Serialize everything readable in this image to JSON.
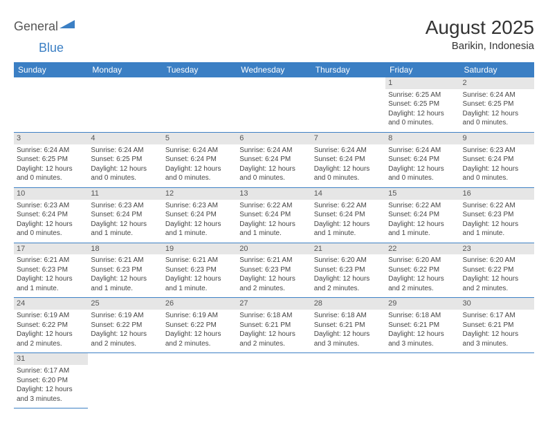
{
  "logo": {
    "general": "General",
    "blue": "Blue"
  },
  "title": "August 2025",
  "location": "Barikin, Indonesia",
  "colors": {
    "header_bg": "#3b7fc4",
    "daynum_bg": "#e6e6e6",
    "border": "#3b7fc4"
  },
  "daynames": [
    "Sunday",
    "Monday",
    "Tuesday",
    "Wednesday",
    "Thursday",
    "Friday",
    "Saturday"
  ],
  "weeks": [
    [
      null,
      null,
      null,
      null,
      null,
      {
        "n": "1",
        "sr": "Sunrise: 6:25 AM",
        "ss": "Sunset: 6:25 PM",
        "dl": "Daylight: 12 hours and 0 minutes."
      },
      {
        "n": "2",
        "sr": "Sunrise: 6:24 AM",
        "ss": "Sunset: 6:25 PM",
        "dl": "Daylight: 12 hours and 0 minutes."
      }
    ],
    [
      {
        "n": "3",
        "sr": "Sunrise: 6:24 AM",
        "ss": "Sunset: 6:25 PM",
        "dl": "Daylight: 12 hours and 0 minutes."
      },
      {
        "n": "4",
        "sr": "Sunrise: 6:24 AM",
        "ss": "Sunset: 6:25 PM",
        "dl": "Daylight: 12 hours and 0 minutes."
      },
      {
        "n": "5",
        "sr": "Sunrise: 6:24 AM",
        "ss": "Sunset: 6:24 PM",
        "dl": "Daylight: 12 hours and 0 minutes."
      },
      {
        "n": "6",
        "sr": "Sunrise: 6:24 AM",
        "ss": "Sunset: 6:24 PM",
        "dl": "Daylight: 12 hours and 0 minutes."
      },
      {
        "n": "7",
        "sr": "Sunrise: 6:24 AM",
        "ss": "Sunset: 6:24 PM",
        "dl": "Daylight: 12 hours and 0 minutes."
      },
      {
        "n": "8",
        "sr": "Sunrise: 6:24 AM",
        "ss": "Sunset: 6:24 PM",
        "dl": "Daylight: 12 hours and 0 minutes."
      },
      {
        "n": "9",
        "sr": "Sunrise: 6:23 AM",
        "ss": "Sunset: 6:24 PM",
        "dl": "Daylight: 12 hours and 0 minutes."
      }
    ],
    [
      {
        "n": "10",
        "sr": "Sunrise: 6:23 AM",
        "ss": "Sunset: 6:24 PM",
        "dl": "Daylight: 12 hours and 0 minutes."
      },
      {
        "n": "11",
        "sr": "Sunrise: 6:23 AM",
        "ss": "Sunset: 6:24 PM",
        "dl": "Daylight: 12 hours and 1 minute."
      },
      {
        "n": "12",
        "sr": "Sunrise: 6:23 AM",
        "ss": "Sunset: 6:24 PM",
        "dl": "Daylight: 12 hours and 1 minute."
      },
      {
        "n": "13",
        "sr": "Sunrise: 6:22 AM",
        "ss": "Sunset: 6:24 PM",
        "dl": "Daylight: 12 hours and 1 minute."
      },
      {
        "n": "14",
        "sr": "Sunrise: 6:22 AM",
        "ss": "Sunset: 6:24 PM",
        "dl": "Daylight: 12 hours and 1 minute."
      },
      {
        "n": "15",
        "sr": "Sunrise: 6:22 AM",
        "ss": "Sunset: 6:24 PM",
        "dl": "Daylight: 12 hours and 1 minute."
      },
      {
        "n": "16",
        "sr": "Sunrise: 6:22 AM",
        "ss": "Sunset: 6:23 PM",
        "dl": "Daylight: 12 hours and 1 minute."
      }
    ],
    [
      {
        "n": "17",
        "sr": "Sunrise: 6:21 AM",
        "ss": "Sunset: 6:23 PM",
        "dl": "Daylight: 12 hours and 1 minute."
      },
      {
        "n": "18",
        "sr": "Sunrise: 6:21 AM",
        "ss": "Sunset: 6:23 PM",
        "dl": "Daylight: 12 hours and 1 minute."
      },
      {
        "n": "19",
        "sr": "Sunrise: 6:21 AM",
        "ss": "Sunset: 6:23 PM",
        "dl": "Daylight: 12 hours and 1 minute."
      },
      {
        "n": "20",
        "sr": "Sunrise: 6:21 AM",
        "ss": "Sunset: 6:23 PM",
        "dl": "Daylight: 12 hours and 2 minutes."
      },
      {
        "n": "21",
        "sr": "Sunrise: 6:20 AM",
        "ss": "Sunset: 6:23 PM",
        "dl": "Daylight: 12 hours and 2 minutes."
      },
      {
        "n": "22",
        "sr": "Sunrise: 6:20 AM",
        "ss": "Sunset: 6:22 PM",
        "dl": "Daylight: 12 hours and 2 minutes."
      },
      {
        "n": "23",
        "sr": "Sunrise: 6:20 AM",
        "ss": "Sunset: 6:22 PM",
        "dl": "Daylight: 12 hours and 2 minutes."
      }
    ],
    [
      {
        "n": "24",
        "sr": "Sunrise: 6:19 AM",
        "ss": "Sunset: 6:22 PM",
        "dl": "Daylight: 12 hours and 2 minutes."
      },
      {
        "n": "25",
        "sr": "Sunrise: 6:19 AM",
        "ss": "Sunset: 6:22 PM",
        "dl": "Daylight: 12 hours and 2 minutes."
      },
      {
        "n": "26",
        "sr": "Sunrise: 6:19 AM",
        "ss": "Sunset: 6:22 PM",
        "dl": "Daylight: 12 hours and 2 minutes."
      },
      {
        "n": "27",
        "sr": "Sunrise: 6:18 AM",
        "ss": "Sunset: 6:21 PM",
        "dl": "Daylight: 12 hours and 2 minutes."
      },
      {
        "n": "28",
        "sr": "Sunrise: 6:18 AM",
        "ss": "Sunset: 6:21 PM",
        "dl": "Daylight: 12 hours and 3 minutes."
      },
      {
        "n": "29",
        "sr": "Sunrise: 6:18 AM",
        "ss": "Sunset: 6:21 PM",
        "dl": "Daylight: 12 hours and 3 minutes."
      },
      {
        "n": "30",
        "sr": "Sunrise: 6:17 AM",
        "ss": "Sunset: 6:21 PM",
        "dl": "Daylight: 12 hours and 3 minutes."
      }
    ],
    [
      {
        "n": "31",
        "sr": "Sunrise: 6:17 AM",
        "ss": "Sunset: 6:20 PM",
        "dl": "Daylight: 12 hours and 3 minutes."
      },
      null,
      null,
      null,
      null,
      null,
      null
    ]
  ]
}
